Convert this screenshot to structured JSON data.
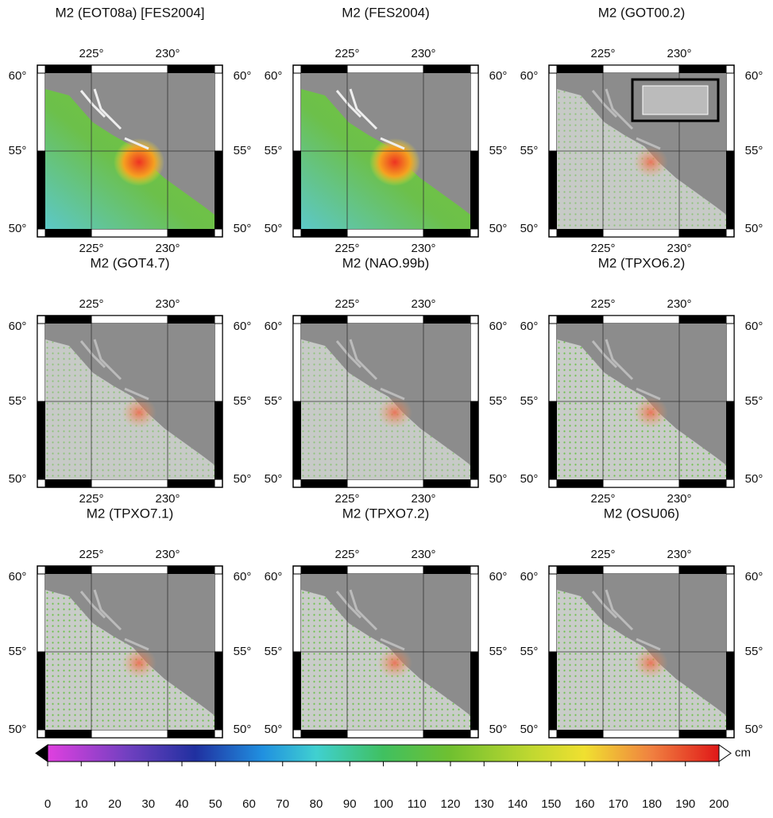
{
  "panels": [
    {
      "title": "M2 (EOT08a) [FES2004]"
    },
    {
      "title": "M2 (FES2004)"
    },
    {
      "title": "M2 (GOT00.2)"
    },
    {
      "title": "M2 (GOT4.7)"
    },
    {
      "title": "M2 (NAO.99b)"
    },
    {
      "title": "M2 (TPXO6.2)"
    },
    {
      "title": "M2 (TPXO7.1)"
    },
    {
      "title": "M2 (TPXO7.2)"
    },
    {
      "title": "M2 (OSU06)"
    }
  ],
  "longitude_labels": [
    "225°",
    "230°"
  ],
  "latitude_labels": [
    "60°",
    "55°",
    "50°"
  ],
  "colorbar": {
    "ticks": [
      0,
      10,
      20,
      30,
      40,
      50,
      60,
      70,
      80,
      90,
      100,
      110,
      120,
      130,
      140,
      150,
      160,
      170,
      180,
      190,
      200
    ],
    "unit": "cm"
  }
}
